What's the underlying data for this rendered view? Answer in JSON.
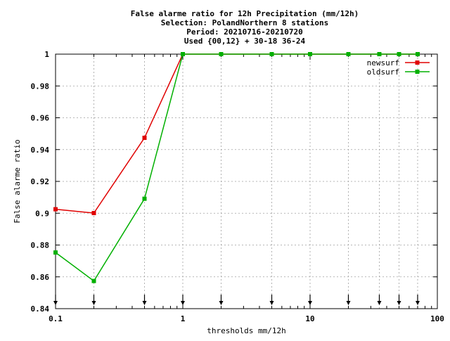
{
  "chart_data": {
    "type": "line",
    "title_lines": [
      "False alarme ratio  for 12h Precipitation (mm/12h)",
      "Selection: PolandNorthern      8 stations",
      "Period: 20210716-20210720",
      "Used {00,12} + 30-18 36-24"
    ],
    "xlabel": "thresholds mm/12h",
    "ylabel": "False alarme ratio",
    "x_scale": "log",
    "xlim": [
      0.1,
      100
    ],
    "ylim": [
      0.84,
      1.0
    ],
    "x_ticks": [
      0.1,
      1,
      10,
      100
    ],
    "x_tick_labels": [
      "0.1",
      "1",
      "10",
      "100"
    ],
    "y_ticks": [
      0.84,
      0.86,
      0.88,
      0.9,
      0.92,
      0.94,
      0.96,
      0.98,
      1.0
    ],
    "y_tick_labels": [
      "0.84",
      "0.86",
      "0.88",
      "0.9",
      "0.92",
      "0.94",
      "0.96",
      "0.98",
      "1"
    ],
    "grid": true,
    "legend_position": "top-right",
    "threshold_markers": [
      0.1,
      0.2,
      0.5,
      1,
      2,
      5,
      10,
      20,
      35,
      50,
      70
    ],
    "series": [
      {
        "name": "newsurf",
        "color": "#e00000",
        "x": [
          0.1,
          0.2,
          0.5,
          1,
          2,
          5,
          10,
          20,
          35,
          50,
          70
        ],
        "y": [
          0.9025,
          0.9001,
          0.9474,
          1.0,
          1.0,
          1.0,
          1.0,
          1.0,
          1.0,
          1.0,
          1.0
        ]
      },
      {
        "name": "oldsurf",
        "color": "#00b000",
        "x": [
          0.1,
          0.2,
          0.5,
          1,
          2,
          5,
          10,
          20,
          35,
          50,
          70
        ],
        "y": [
          0.8753,
          0.8574,
          0.9091,
          1.0,
          1.0,
          1.0,
          1.0,
          1.0,
          1.0,
          1.0,
          1.0
        ]
      }
    ]
  }
}
